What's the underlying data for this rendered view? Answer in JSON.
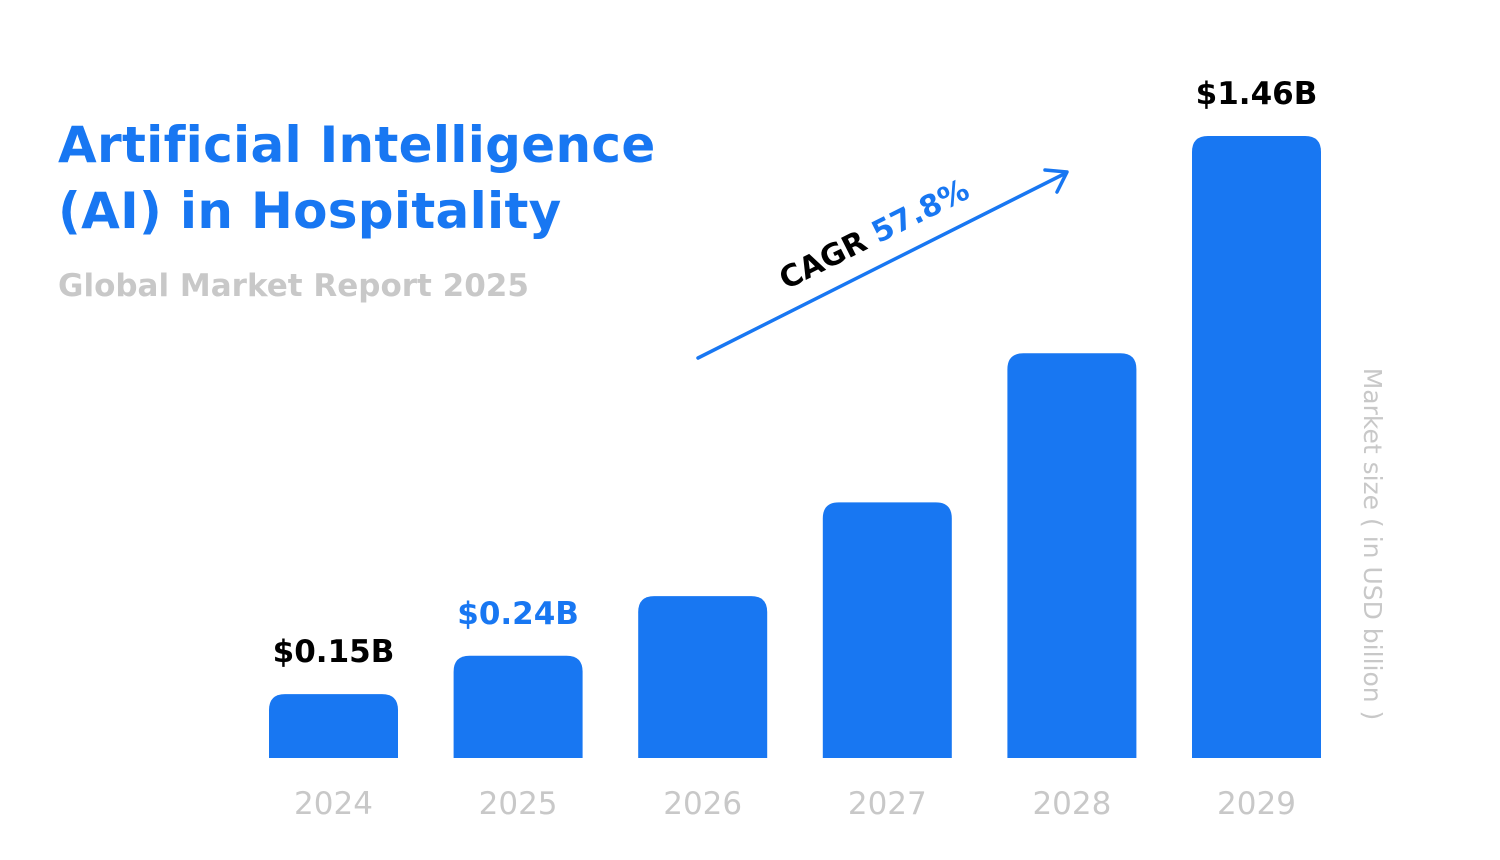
{
  "header": {
    "title_line1": "Artificial Intelligence",
    "title_line2": "(AI) in Hospitality",
    "subtitle": "Global Market Report 2025"
  },
  "colors": {
    "bar": "#1877F2",
    "accent": "#1877F2",
    "label_dark": "#000000",
    "muted": "#c8c8c8"
  },
  "chart_data": {
    "type": "bar",
    "categories": [
      "2024",
      "2025",
      "2026",
      "2027",
      "2028",
      "2029"
    ],
    "values": [
      0.15,
      0.24,
      0.38,
      0.6,
      0.95,
      1.46
    ],
    "data_labels": [
      {
        "index": 0,
        "text": "$0.15B",
        "style": "dark"
      },
      {
        "index": 1,
        "text": "$0.24B",
        "style": "accent"
      },
      {
        "index": 5,
        "text": "$1.46B",
        "style": "dark"
      }
    ],
    "ylabel": "Market size ( in USD billion )",
    "annotation": {
      "prefix": "CAGR",
      "value": "57.8%"
    },
    "grid": false
  }
}
